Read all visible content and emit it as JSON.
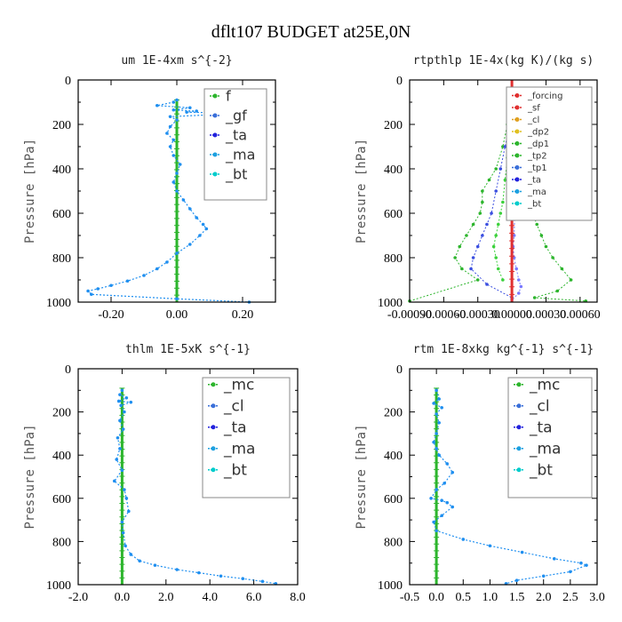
{
  "figure_title": "dflt107  BUDGET at25E,0N",
  "chart_data": [
    {
      "type": "line",
      "title": "um  1E-4xm s^{-2}",
      "xlabel": "",
      "ylabel": "Pressure [hPa]",
      "xlim": [
        -0.3,
        0.3
      ],
      "ylim": [
        1000,
        0
      ],
      "xticks": [
        "-0.20",
        "0.00",
        "0.20"
      ],
      "xtick_values": [
        -0.2,
        0.0,
        0.2
      ],
      "yticks": [
        "0",
        "200",
        "400",
        "600",
        "800",
        "1000"
      ],
      "legend": [
        {
          "name": "f",
          "color": "#2db52d"
        },
        {
          "name": "_gf",
          "color": "#3a6fd9"
        },
        {
          "name": "_ta",
          "color": "#2222dd"
        },
        {
          "name": "_ma",
          "color": "#1da0e0"
        },
        {
          "name": "_bt",
          "color": "#00cccc"
        }
      ],
      "series": [
        {
          "name": "f",
          "color": "#2db52d",
          "width": 3,
          "x": [
            0,
            0
          ],
          "y": [
            90,
            1000
          ]
        },
        {
          "name": "_gf",
          "color": "#1f8ff0",
          "width": 1.2,
          "dotted": true,
          "markers": true,
          "x": [
            0.0,
            -0.01,
            -0.06,
            0.04,
            -0.01,
            0.06,
            0.03,
            0.2,
            -0.02,
            0.0,
            -0.02,
            -0.03,
            -0.01,
            -0.02,
            -0.01,
            0.01,
            0.0,
            -0.01,
            0.0,
            0.02,
            0.04,
            0.06,
            0.08,
            0.09,
            0.07,
            0.04,
            0.0,
            -0.03,
            -0.06,
            -0.1,
            -0.15,
            -0.2,
            -0.24,
            -0.27,
            -0.26,
            0.0,
            0.22
          ],
          "y": [
            90,
            100,
            115,
            125,
            135,
            140,
            145,
            150,
            165,
            180,
            210,
            240,
            270,
            300,
            340,
            380,
            420,
            460,
            500,
            540,
            580,
            620,
            650,
            670,
            700,
            740,
            780,
            820,
            850,
            880,
            905,
            925,
            940,
            950,
            965,
            985,
            1000
          ]
        }
      ]
    },
    {
      "type": "line",
      "title": "rtpthlp  1E-4x(kg K)/(kg s)",
      "xlabel": "",
      "ylabel": "Pressure [hPa]",
      "xlim": [
        -0.0009,
        0.00075
      ],
      "ylim": [
        1000,
        0
      ],
      "xticks": [
        "-0.00090",
        "-0.00060",
        "-0.00030",
        "0.00000",
        "0.00030",
        "0.00060"
      ],
      "xtick_values": [
        -0.0009,
        -0.0006,
        -0.0003,
        0.0,
        0.0003,
        0.0006
      ],
      "yticks": [
        "0",
        "200",
        "400",
        "600",
        "800",
        "1000"
      ],
      "legend": [
        {
          "name": "_forcing",
          "color": "#e03030"
        },
        {
          "name": "_sf",
          "color": "#e03030"
        },
        {
          "name": "_cl",
          "color": "#e0a020"
        },
        {
          "name": "_dp2",
          "color": "#e0c020"
        },
        {
          "name": "_dp1",
          "color": "#2db52d"
        },
        {
          "name": "_tp2",
          "color": "#2db52d"
        },
        {
          "name": "_tp1",
          "color": "#3a6fd9"
        },
        {
          "name": "_ta",
          "color": "#2222dd"
        },
        {
          "name": "_ma",
          "color": "#1da0e0"
        },
        {
          "name": "_bt",
          "color": "#00cccc"
        }
      ],
      "series": [
        {
          "name": "_dp1",
          "color": "#2db52d",
          "width": 1,
          "dotted": true,
          "markers": true,
          "x": [
            0.0,
            2e-05,
            4e-05,
            6e-05,
            8e-05,
            0.0001,
            0.00014,
            0.00018,
            0.00022,
            0.00026,
            0.0003,
            0.00036,
            0.00044,
            0.00052,
            0.0004,
            0.0002,
            0.00065
          ],
          "y": [
            100,
            200,
            300,
            400,
            450,
            500,
            550,
            600,
            650,
            700,
            750,
            800,
            850,
            900,
            950,
            980,
            995
          ]
        },
        {
          "name": "_tp1",
          "color": "#2db52d",
          "width": 1,
          "dotted": true,
          "markers": true,
          "x": [
            0.0,
            -4e-05,
            -8e-05,
            -0.00014,
            -0.0002,
            -0.00026,
            -0.00026,
            -0.00028,
            -0.00034,
            -0.0004,
            -0.00046,
            -0.0005,
            -0.00044,
            -0.0003,
            -0.0009
          ],
          "y": [
            100,
            200,
            300,
            400,
            450,
            500,
            550,
            600,
            650,
            700,
            750,
            800,
            850,
            900,
            995
          ]
        },
        {
          "name": "_tp2",
          "color": "#3bd13b",
          "width": 1,
          "dotted": true,
          "markers": true,
          "x": [
            0.0,
            -2e-05,
            -4e-05,
            -6e-05,
            -8e-05,
            -0.0001,
            -0.00012,
            -0.00014,
            -0.00016,
            -0.00014,
            -0.00012,
            -8e-05
          ],
          "y": [
            150,
            250,
            350,
            450,
            550,
            600,
            650,
            700,
            750,
            800,
            850,
            900
          ]
        },
        {
          "name": "_ta",
          "color": "#3b4fe0",
          "width": 1,
          "dotted": true,
          "markers": true,
          "x": [
            0.0,
            -2e-05,
            -6e-05,
            -0.0001,
            -0.00014,
            -0.00018,
            -0.00022,
            -0.00026,
            -0.0003,
            -0.00034,
            -0.00036,
            -0.00022,
            0.0
          ],
          "y": [
            100,
            200,
            300,
            400,
            500,
            600,
            650,
            700,
            750,
            800,
            850,
            920,
            980
          ]
        },
        {
          "name": "_bt",
          "color": "#7a7aff",
          "width": 1,
          "dotted": true,
          "markers": true,
          "x": [
            0.0,
            2e-05,
            3e-05,
            2e-05,
            1e-05,
            2e-05,
            4e-05,
            6e-05,
            8e-05,
            6e-05,
            0.0
          ],
          "y": [
            100,
            300,
            500,
            700,
            750,
            800,
            850,
            900,
            930,
            960,
            990
          ]
        },
        {
          "name": "_forcing",
          "color": "#e03030",
          "width": 3,
          "x": [
            0,
            0
          ],
          "y": [
            0,
            1000
          ]
        }
      ]
    },
    {
      "type": "line",
      "title": "thlm  1E-5xK s^{-1}",
      "xlabel": "",
      "ylabel": "Pressure [hPa]",
      "xlim": [
        -2.0,
        8.0
      ],
      "ylim": [
        1000,
        0
      ],
      "xticks": [
        "-2.0",
        "0.0",
        "2.0",
        "4.0",
        "6.0",
        "8.0"
      ],
      "xtick_values": [
        -2.0,
        0.0,
        2.0,
        4.0,
        6.0,
        8.0
      ],
      "yticks": [
        "0",
        "200",
        "400",
        "600",
        "800",
        "1000"
      ],
      "legend": [
        {
          "name": "_mc",
          "color": "#2db52d"
        },
        {
          "name": "_cl",
          "color": "#3a6fd9"
        },
        {
          "name": "_ta",
          "color": "#2222dd"
        },
        {
          "name": "_ma",
          "color": "#1da0e0"
        },
        {
          "name": "_bt",
          "color": "#00cccc"
        }
      ],
      "series": [
        {
          "name": "_mc",
          "color": "#2db52d",
          "width": 3,
          "x": [
            0,
            0
          ],
          "y": [
            90,
            1000
          ]
        },
        {
          "name": "_cl",
          "color": "#1f8ff0",
          "width": 1.2,
          "dotted": true,
          "markers": true,
          "x": [
            0.0,
            -0.1,
            0.2,
            -0.15,
            0.4,
            -0.05,
            0.1,
            -0.1,
            0.05,
            -0.2,
            -0.1,
            -0.25,
            0.0,
            -0.35,
            0.1,
            0.2,
            0.3,
            0.0,
            0.05,
            0.15,
            0.4,
            0.8,
            1.5,
            2.5,
            3.5,
            4.5,
            5.5,
            6.4,
            7.0
          ],
          "y": [
            100,
            120,
            135,
            150,
            155,
            170,
            200,
            240,
            280,
            320,
            370,
            420,
            470,
            520,
            560,
            600,
            660,
            710,
            760,
            820,
            860,
            890,
            910,
            930,
            945,
            960,
            972,
            985,
            995
          ]
        }
      ]
    },
    {
      "type": "line",
      "title": "rtm  1E-8xkg kg^{-1} s^{-1}",
      "xlabel": "",
      "ylabel": "Pressure [hPa]",
      "xlim": [
        -0.5,
        3.0
      ],
      "ylim": [
        1000,
        0
      ],
      "xticks": [
        "-0.5",
        "0.0",
        "0.5",
        "1.0",
        "1.5",
        "2.0",
        "2.5",
        "3.0"
      ],
      "xtick_values": [
        -0.5,
        0.0,
        0.5,
        1.0,
        1.5,
        2.0,
        2.5,
        3.0
      ],
      "yticks": [
        "0",
        "200",
        "400",
        "600",
        "800",
        "1000"
      ],
      "legend": [
        {
          "name": "_mc",
          "color": "#2db52d"
        },
        {
          "name": "_cl",
          "color": "#3a6fd9"
        },
        {
          "name": "_ta",
          "color": "#2222dd"
        },
        {
          "name": "_ma",
          "color": "#1da0e0"
        },
        {
          "name": "_bt",
          "color": "#00cccc"
        }
      ],
      "series": [
        {
          "name": "_mc",
          "color": "#2db52d",
          "width": 3,
          "x": [
            0,
            0
          ],
          "y": [
            90,
            1000
          ]
        },
        {
          "name": "_cl",
          "color": "#1f8ff0",
          "width": 1.2,
          "dotted": true,
          "markers": true,
          "x": [
            0.0,
            0.05,
            -0.05,
            0.1,
            0.0,
            0.05,
            0.0,
            -0.05,
            0.0,
            0.05,
            0.2,
            0.3,
            0.15,
            0.0,
            -0.1,
            0.1,
            0.2,
            0.3,
            0.1,
            -0.05,
            0.0,
            0.5,
            1.0,
            1.6,
            2.2,
            2.7,
            2.8,
            2.5,
            2.0,
            1.5,
            1.3
          ],
          "y": [
            100,
            140,
            160,
            180,
            210,
            250,
            300,
            340,
            370,
            400,
            440,
            480,
            530,
            560,
            600,
            610,
            620,
            640,
            680,
            710,
            750,
            790,
            820,
            850,
            880,
            900,
            910,
            940,
            960,
            980,
            995
          ]
        }
      ]
    }
  ]
}
